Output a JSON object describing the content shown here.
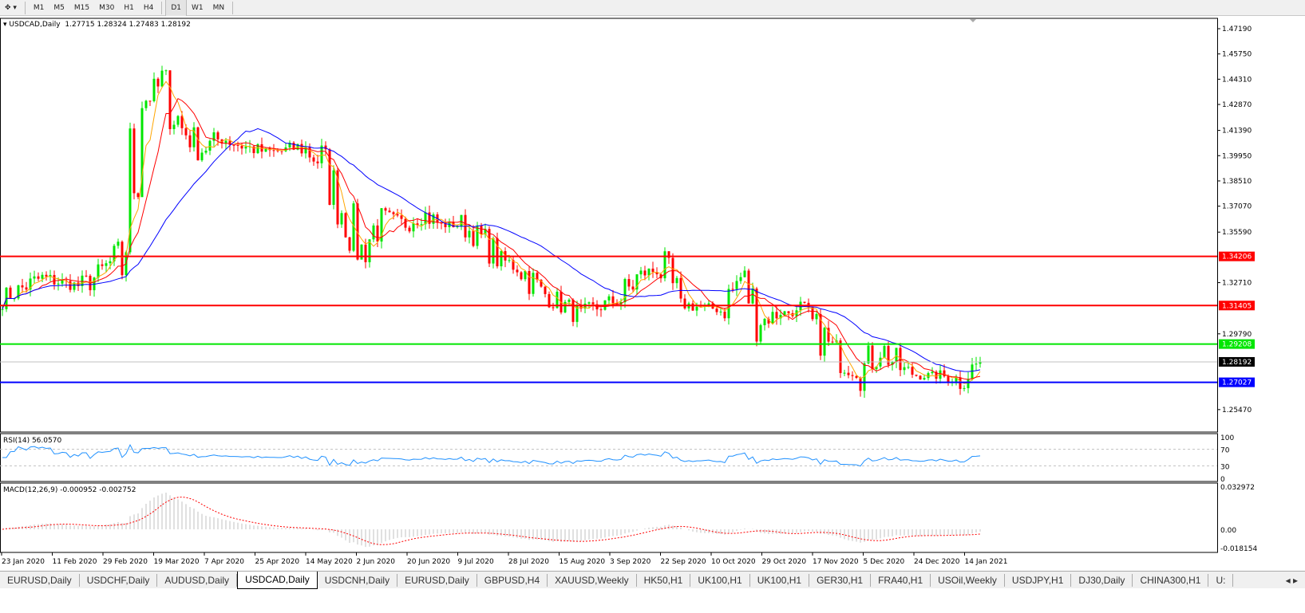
{
  "toolbar": {
    "timeframes": [
      "M1",
      "M5",
      "M15",
      "M30",
      "H1",
      "H4",
      "D1",
      "W1",
      "MN"
    ],
    "active": "D1"
  },
  "info": {
    "symbol": "USDCAD,Daily",
    "open": "1.27715",
    "high": "1.28324",
    "low": "1.27483",
    "close": "1.28192"
  },
  "colors": {
    "bull": "#00e600",
    "bear": "#ff0000",
    "ma_fast": "#ffa500",
    "ma_mid": "#ff0000",
    "ma_slow": "#0000ff",
    "rsi": "#1e90ff",
    "macd_hist": "#c0c0c0",
    "macd_signal": "#ff0000"
  },
  "price_axis": {
    "ticks": [
      "1.47190",
      "1.45750",
      "1.44310",
      "1.42870",
      "1.41390",
      "1.39950",
      "1.38510",
      "1.37070",
      "1.35590",
      "1.32710",
      "1.29790",
      "1.25470"
    ]
  },
  "levels": [
    {
      "value": "1.34206",
      "color": "#ff0000"
    },
    {
      "value": "1.31405",
      "color": "#ff0000"
    },
    {
      "value": "1.29208",
      "color": "#00e600"
    },
    {
      "value": "1.27027",
      "color": "#0000ff"
    }
  ],
  "current_price": "1.28192",
  "rsi": {
    "label": "RSI(14) 56.0570",
    "ticks": [
      "100",
      "70",
      "30",
      "0"
    ]
  },
  "macd": {
    "label": "MACD(12,26,9) -0.000952 -0.002752",
    "ticks": [
      "0.032972",
      "0.00",
      "-0.018154"
    ]
  },
  "chart_data": {
    "type": "candlestick",
    "symbol": "USDCAD",
    "timeframe": "Daily",
    "x_tick_labels": [
      "23 Jan 2020",
      "11 Feb 2020",
      "29 Feb 2020",
      "19 Mar 2020",
      "7 Apr 2020",
      "25 Apr 2020",
      "14 May 2020",
      "2 Jun 2020",
      "20 Jun 2020",
      "9 Jul 2020",
      "28 Jul 2020",
      "15 Aug 2020",
      "3 Sep 2020",
      "22 Sep 2020",
      "10 Oct 2020",
      "29 Oct 2020",
      "17 Nov 2020",
      "5 Dec 2020",
      "24 Dec 2020",
      "14 Jan 2021"
    ],
    "weekly_closes_approx": [
      1.318,
      1.324,
      1.33,
      1.327,
      1.325,
      1.333,
      1.345,
      1.43,
      1.44,
      1.415,
      1.403,
      1.41,
      1.405,
      1.402,
      1.402,
      1.405,
      1.395,
      1.37,
      1.345,
      1.365,
      1.36,
      1.367,
      1.36,
      1.36,
      1.352,
      1.34,
      1.335,
      1.322,
      1.315,
      1.308,
      1.314,
      1.318,
      1.332,
      1.335,
      1.315,
      1.313,
      1.312,
      1.33,
      1.305,
      1.31,
      1.31,
      1.298,
      1.28,
      1.276,
      1.29,
      1.278,
      1.274,
      1.274,
      1.272,
      1.28192
    ],
    "ylim": [
      1.2547,
      1.4719
    ]
  },
  "tabs": [
    "EURUSD,Daily",
    "USDCHF,Daily",
    "AUDUSD,Daily",
    "USDCAD,Daily",
    "USDCNH,Daily",
    "EURUSD,Daily",
    "GBPUSD,H4",
    "XAUUSD,Weekly",
    "HK50,H1",
    "UK100,H1",
    "UK100,H1",
    "GER30,H1",
    "FRA40,H1",
    "USOil,Weekly",
    "USDJPY,H1",
    "DJ30,Daily",
    "CHINA300,H1",
    "U:"
  ],
  "active_tab": "USDCAD,Daily"
}
